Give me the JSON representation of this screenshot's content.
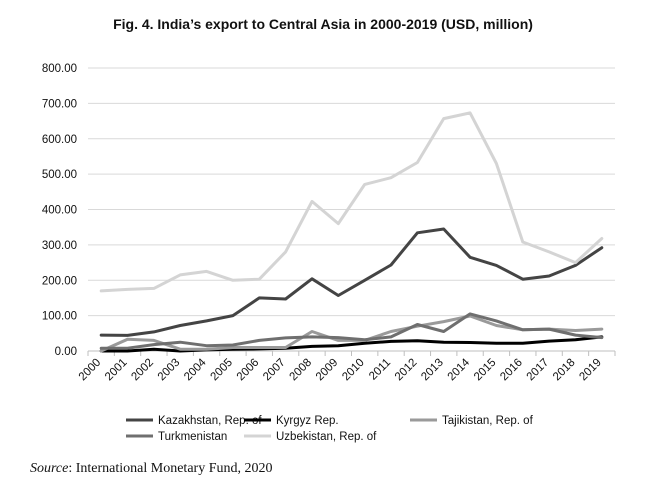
{
  "title": "Fig. 4. India’s export to Central Asia in 2000-2019 (USD, million)",
  "source": {
    "label": "Source",
    "text": ": International Monetary Fund, 2020"
  },
  "chart_data": {
    "type": "line",
    "title": "Fig. 4. India’s export to Central Asia in 2000-2019 (USD, million)",
    "xlabel": "",
    "ylabel": "",
    "ylim": [
      0,
      800
    ],
    "yticks": [
      0,
      100,
      200,
      300,
      400,
      500,
      600,
      700,
      800
    ],
    "ytick_labels": [
      "0.00",
      "100.00",
      "200.00",
      "300.00",
      "400.00",
      "500.00",
      "600.00",
      "700.00",
      "800.00"
    ],
    "grid": "horizontal",
    "legend_position": "bottom",
    "categories": [
      "2000",
      "2001",
      "2002",
      "2003",
      "2004",
      "2005",
      "2006",
      "2007",
      "2008",
      "2009",
      "2010",
      "2011",
      "2012",
      "2013",
      "2014",
      "2015",
      "2016",
      "2017",
      "2018",
      "2019"
    ],
    "series": [
      {
        "name": "Kazakhstan, Rep. of",
        "color": "#444444",
        "values": [
          45,
          44,
          54,
          72,
          85,
          100,
          150,
          147,
          204,
          157,
          200,
          243,
          334,
          345,
          265,
          242,
          203,
          212,
          242,
          292
        ]
      },
      {
        "name": "Kyrgyz Rep.",
        "color": "#000000",
        "values": [
          0,
          0,
          5,
          0,
          3,
          5,
          6,
          8,
          13,
          15,
          22,
          27,
          29,
          25,
          24,
          22,
          22,
          28,
          32,
          40
        ]
      },
      {
        "name": "Tajikistan, Rep. of",
        "color": "#9a9a9a",
        "values": [
          0,
          33,
          30,
          5,
          5,
          10,
          10,
          10,
          55,
          30,
          30,
          55,
          70,
          83,
          99,
          72,
          60,
          62,
          58,
          62
        ]
      },
      {
        "name": "Turkmenistan",
        "color": "#6f6f6f",
        "values": [
          8,
          8,
          18,
          25,
          15,
          17,
          30,
          37,
          40,
          38,
          32,
          40,
          75,
          55,
          105,
          85,
          60,
          62,
          45,
          38
        ]
      },
      {
        "name": "Uzbekistan, Rep. of",
        "color": "#d4d4d4",
        "values": [
          170,
          174,
          177,
          215,
          225,
          200,
          203,
          280,
          423,
          360,
          471,
          490,
          533,
          657,
          673,
          530,
          308,
          280,
          250,
          318
        ]
      }
    ]
  }
}
